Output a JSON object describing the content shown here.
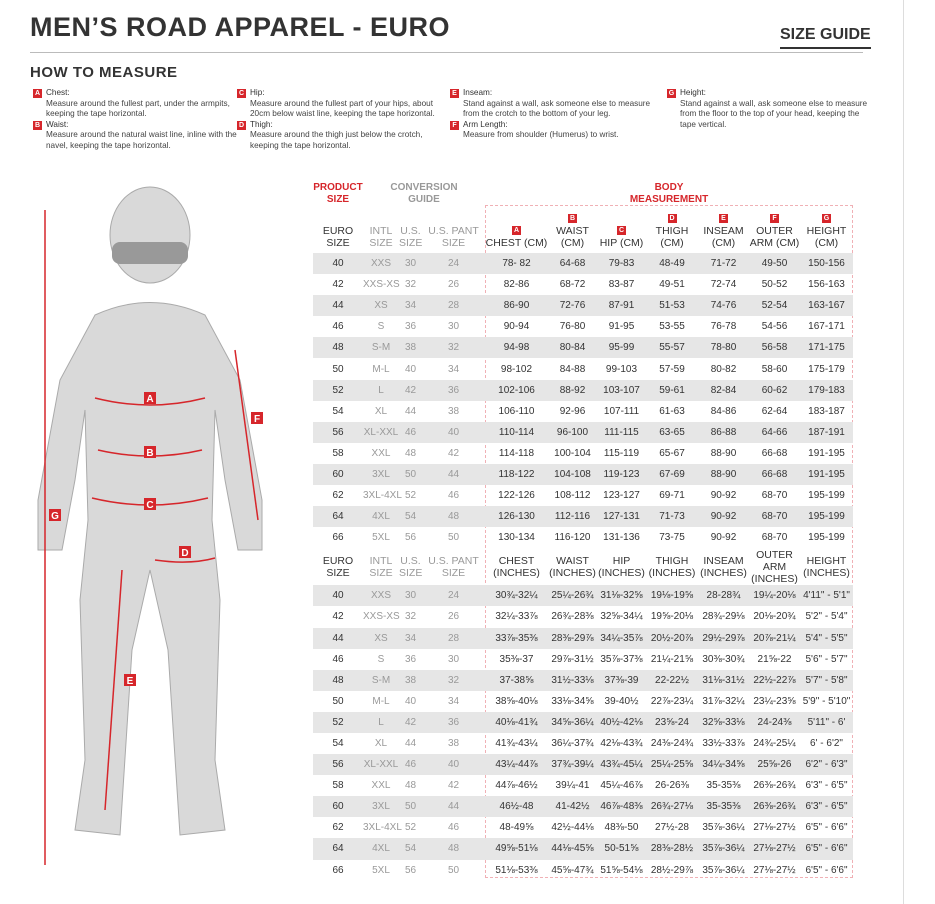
{
  "header": {
    "title": "MEN’S ROAD APPAREL - EURO",
    "size_guide": "SIZE GUIDE"
  },
  "how_to": {
    "title": "HOW TO MEASURE",
    "items": [
      {
        "letter": "A",
        "name": "Chest:",
        "desc": "Measure around the fullest part, under the armpits, keeping the tape horizontal."
      },
      {
        "letter": "B",
        "name": "Waist:",
        "desc": "Measure around the natural waist line, inline with the navel, keeping the tape horizontal."
      },
      {
        "letter": "C",
        "name": "Hip:",
        "desc": "Measure around the fullest part of your hips, about 20cm below waist line, keeping the tape horizontal."
      },
      {
        "letter": "D",
        "name": "Thigh:",
        "desc": "Measure around the thigh just below the crotch, keeping the tape horizontal."
      },
      {
        "letter": "E",
        "name": "Inseam:",
        "desc": "Stand against a wall, ask someone else to measure from the crotch to the bottom of your leg."
      },
      {
        "letter": "F",
        "name": "Arm Length:",
        "desc": "Measure from shoulder (Humerus) to wrist."
      },
      {
        "letter": "G",
        "name": "Height:",
        "desc": "Stand against a wall, ask someone else to measure from the floor to the top of your head, keeping the tape vertical."
      }
    ]
  },
  "figure": {
    "labels": [
      "A",
      "B",
      "C",
      "D",
      "E",
      "F",
      "G"
    ],
    "accent": "#d6262b"
  },
  "table": {
    "group_headers": {
      "product": "PRODUCT SIZE",
      "conversion": "CONVERSION GUIDE",
      "body": "BODY MEASUREMENT"
    },
    "cm_headers": [
      "EURO SIZE",
      "INTL SIZE",
      "U.S. SIZE",
      "U.S. PANT SIZE",
      "CHEST (CM)",
      "WAIST (CM)",
      "HIP (CM)",
      "THIGH (CM)",
      "INSEAM (CM)",
      "OUTER ARM (CM)",
      "HEIGHT (CM)"
    ],
    "letters": [
      "A",
      "B",
      "C",
      "D",
      "E",
      "F",
      "G"
    ],
    "cm_rows": [
      [
        "40",
        "XXS",
        "30",
        "24",
        "78- 82",
        "64-68",
        "79-83",
        "48-49",
        "71-72",
        "49-50",
        "150-156"
      ],
      [
        "42",
        "XXS-XS",
        "32",
        "26",
        "82-86",
        "68-72",
        "83-87",
        "49-51",
        "72-74",
        "50-52",
        "156-163"
      ],
      [
        "44",
        "XS",
        "34",
        "28",
        "86-90",
        "72-76",
        "87-91",
        "51-53",
        "74-76",
        "52-54",
        "163-167"
      ],
      [
        "46",
        "S",
        "36",
        "30",
        "90-94",
        "76-80",
        "91-95",
        "53-55",
        "76-78",
        "54-56",
        "167-171"
      ],
      [
        "48",
        "S-M",
        "38",
        "32",
        "94-98",
        "80-84",
        "95-99",
        "55-57",
        "78-80",
        "56-58",
        "171-175"
      ],
      [
        "50",
        "M-L",
        "40",
        "34",
        "98-102",
        "84-88",
        "99-103",
        "57-59",
        "80-82",
        "58-60",
        "175-179"
      ],
      [
        "52",
        "L",
        "42",
        "36",
        "102-106",
        "88-92",
        "103-107",
        "59-61",
        "82-84",
        "60-62",
        "179-183"
      ],
      [
        "54",
        "XL",
        "44",
        "38",
        "106-110",
        "92-96",
        "107-111",
        "61-63",
        "84-86",
        "62-64",
        "183-187"
      ],
      [
        "56",
        "XL-XXL",
        "46",
        "40",
        "110-114",
        "96-100",
        "111-115",
        "63-65",
        "86-88",
        "64-66",
        "187-191"
      ],
      [
        "58",
        "XXL",
        "48",
        "42",
        "114-118",
        "100-104",
        "115-119",
        "65-67",
        "88-90",
        "66-68",
        "191-195"
      ],
      [
        "60",
        "3XL",
        "50",
        "44",
        "118-122",
        "104-108",
        "119-123",
        "67-69",
        "88-90",
        "66-68",
        "191-195"
      ],
      [
        "62",
        "3XL-4XL",
        "52",
        "46",
        "122-126",
        "108-112",
        "123-127",
        "69-71",
        "90-92",
        "68-70",
        "195-199"
      ],
      [
        "64",
        "4XL",
        "54",
        "48",
        "126-130",
        "112-116",
        "127-131",
        "71-73",
        "90-92",
        "68-70",
        "195-199"
      ],
      [
        "66",
        "5XL",
        "56",
        "50",
        "130-134",
        "116-120",
        "131-136",
        "73-75",
        "90-92",
        "68-70",
        "195-199"
      ]
    ],
    "in_headers": [
      "EURO SIZE",
      "INTL SIZE",
      "U.S. SIZE",
      "U.S. PANT SIZE",
      "CHEST (INCHES)",
      "WAIST (INCHES)",
      "HIP (INCHES)",
      "THIGH (INCHES)",
      "INSEAM (INCHES)",
      "OUTER ARM (INCHES)",
      "HEIGHT (INCHES)"
    ],
    "in_rows": [
      [
        "40",
        "XXS",
        "30",
        "24",
        "30¾-32¼",
        "25¼-26¾",
        "31⅛-32⅝",
        "19⅛-19⅝",
        "28-28¾",
        "19¼-20⅛",
        "4'11\" - 5'1\""
      ],
      [
        "42",
        "XXS-XS",
        "32",
        "26",
        "32¼-33⅞",
        "26¾-28⅜",
        "32⅝-34¼",
        "19⅝-20⅛",
        "28¾-29⅛",
        "20⅛-20¾",
        "5'2\" - 5'4\""
      ],
      [
        "44",
        "XS",
        "34",
        "28",
        "33⅞-35⅜",
        "28⅜-29⅞",
        "34¼-35⅞",
        "20½-20⅞",
        "29½-29⅞",
        "20⅞-21¼",
        "5'4\" - 5'5\""
      ],
      [
        "46",
        "S",
        "36",
        "30",
        "35⅜-37",
        "29⅞-31½",
        "35⅞-37⅜",
        "21¼-21⅝",
        "30⅜-30¾",
        "21⅝-22",
        "5'6\" - 5'7\""
      ],
      [
        "48",
        "S-M",
        "38",
        "32",
        "37-38⅝",
        "31½-33⅛",
        "37⅜-39",
        "22-22½",
        "31⅛-31½",
        "22½-22⅞",
        "5'7\" - 5'8\""
      ],
      [
        "50",
        "M-L",
        "40",
        "34",
        "38⅝-40⅛",
        "33⅛-34⅝",
        "39-40½",
        "22⅞-23¼",
        "31⅞-32¼",
        "23¼-23⅝",
        "5'9\" - 5'10\""
      ],
      [
        "52",
        "L",
        "42",
        "36",
        "40⅛-41¾",
        "34⅝-36¼",
        "40½-42⅛",
        "23⅝-24",
        "32⅝-33⅛",
        "24-24⅜",
        "5'11\" - 6'"
      ],
      [
        "54",
        "XL",
        "44",
        "38",
        "41¾-43¼",
        "36¼-37¾",
        "42⅛-43¾",
        "24⅜-24¾",
        "33½-33⅞",
        "24¾-25¼",
        "6' - 6'2\""
      ],
      [
        "56",
        "XL-XXL",
        "46",
        "40",
        "43¼-44⅞",
        "37¾-39¼",
        "43¾-45¼",
        "25¼-25⅝",
        "34¼-34⅝",
        "25⅝-26",
        "6'2\" - 6'3\""
      ],
      [
        "58",
        "XXL",
        "48",
        "42",
        "44⅞-46½",
        "39¼-41",
        "45¼-46⅞",
        "26-26⅜",
        "35-35⅜",
        "26⅜-26¾",
        "6'3\" - 6'5\""
      ],
      [
        "60",
        "3XL",
        "50",
        "44",
        "46½-48",
        "41-42½",
        "46⅞-48⅜",
        "26¾-27⅛",
        "35-35⅜",
        "26⅜-26¾",
        "6'3\" - 6'5\""
      ],
      [
        "62",
        "3XL-4XL",
        "52",
        "46",
        "48-49⅝",
        "42½-44⅛",
        "48⅜-50",
        "27½-28",
        "35⅞-36¼",
        "27⅛-27½",
        "6'5\" - 6'6\""
      ],
      [
        "64",
        "4XL",
        "54",
        "48",
        "49⅝-51⅛",
        "44⅛-45⅝",
        "50-51⅝",
        "28⅜-28½",
        "35⅞-36¼",
        "27⅛-27½",
        "6'5\" - 6'6\""
      ],
      [
        "66",
        "5XL",
        "56",
        "50",
        "51⅛-53⅜",
        "45⅝-47¾",
        "51⅝-54⅛",
        "28½-29⅞",
        "35⅞-36¼",
        "27⅛-27½",
        "6'5\" - 6'6\""
      ]
    ]
  }
}
